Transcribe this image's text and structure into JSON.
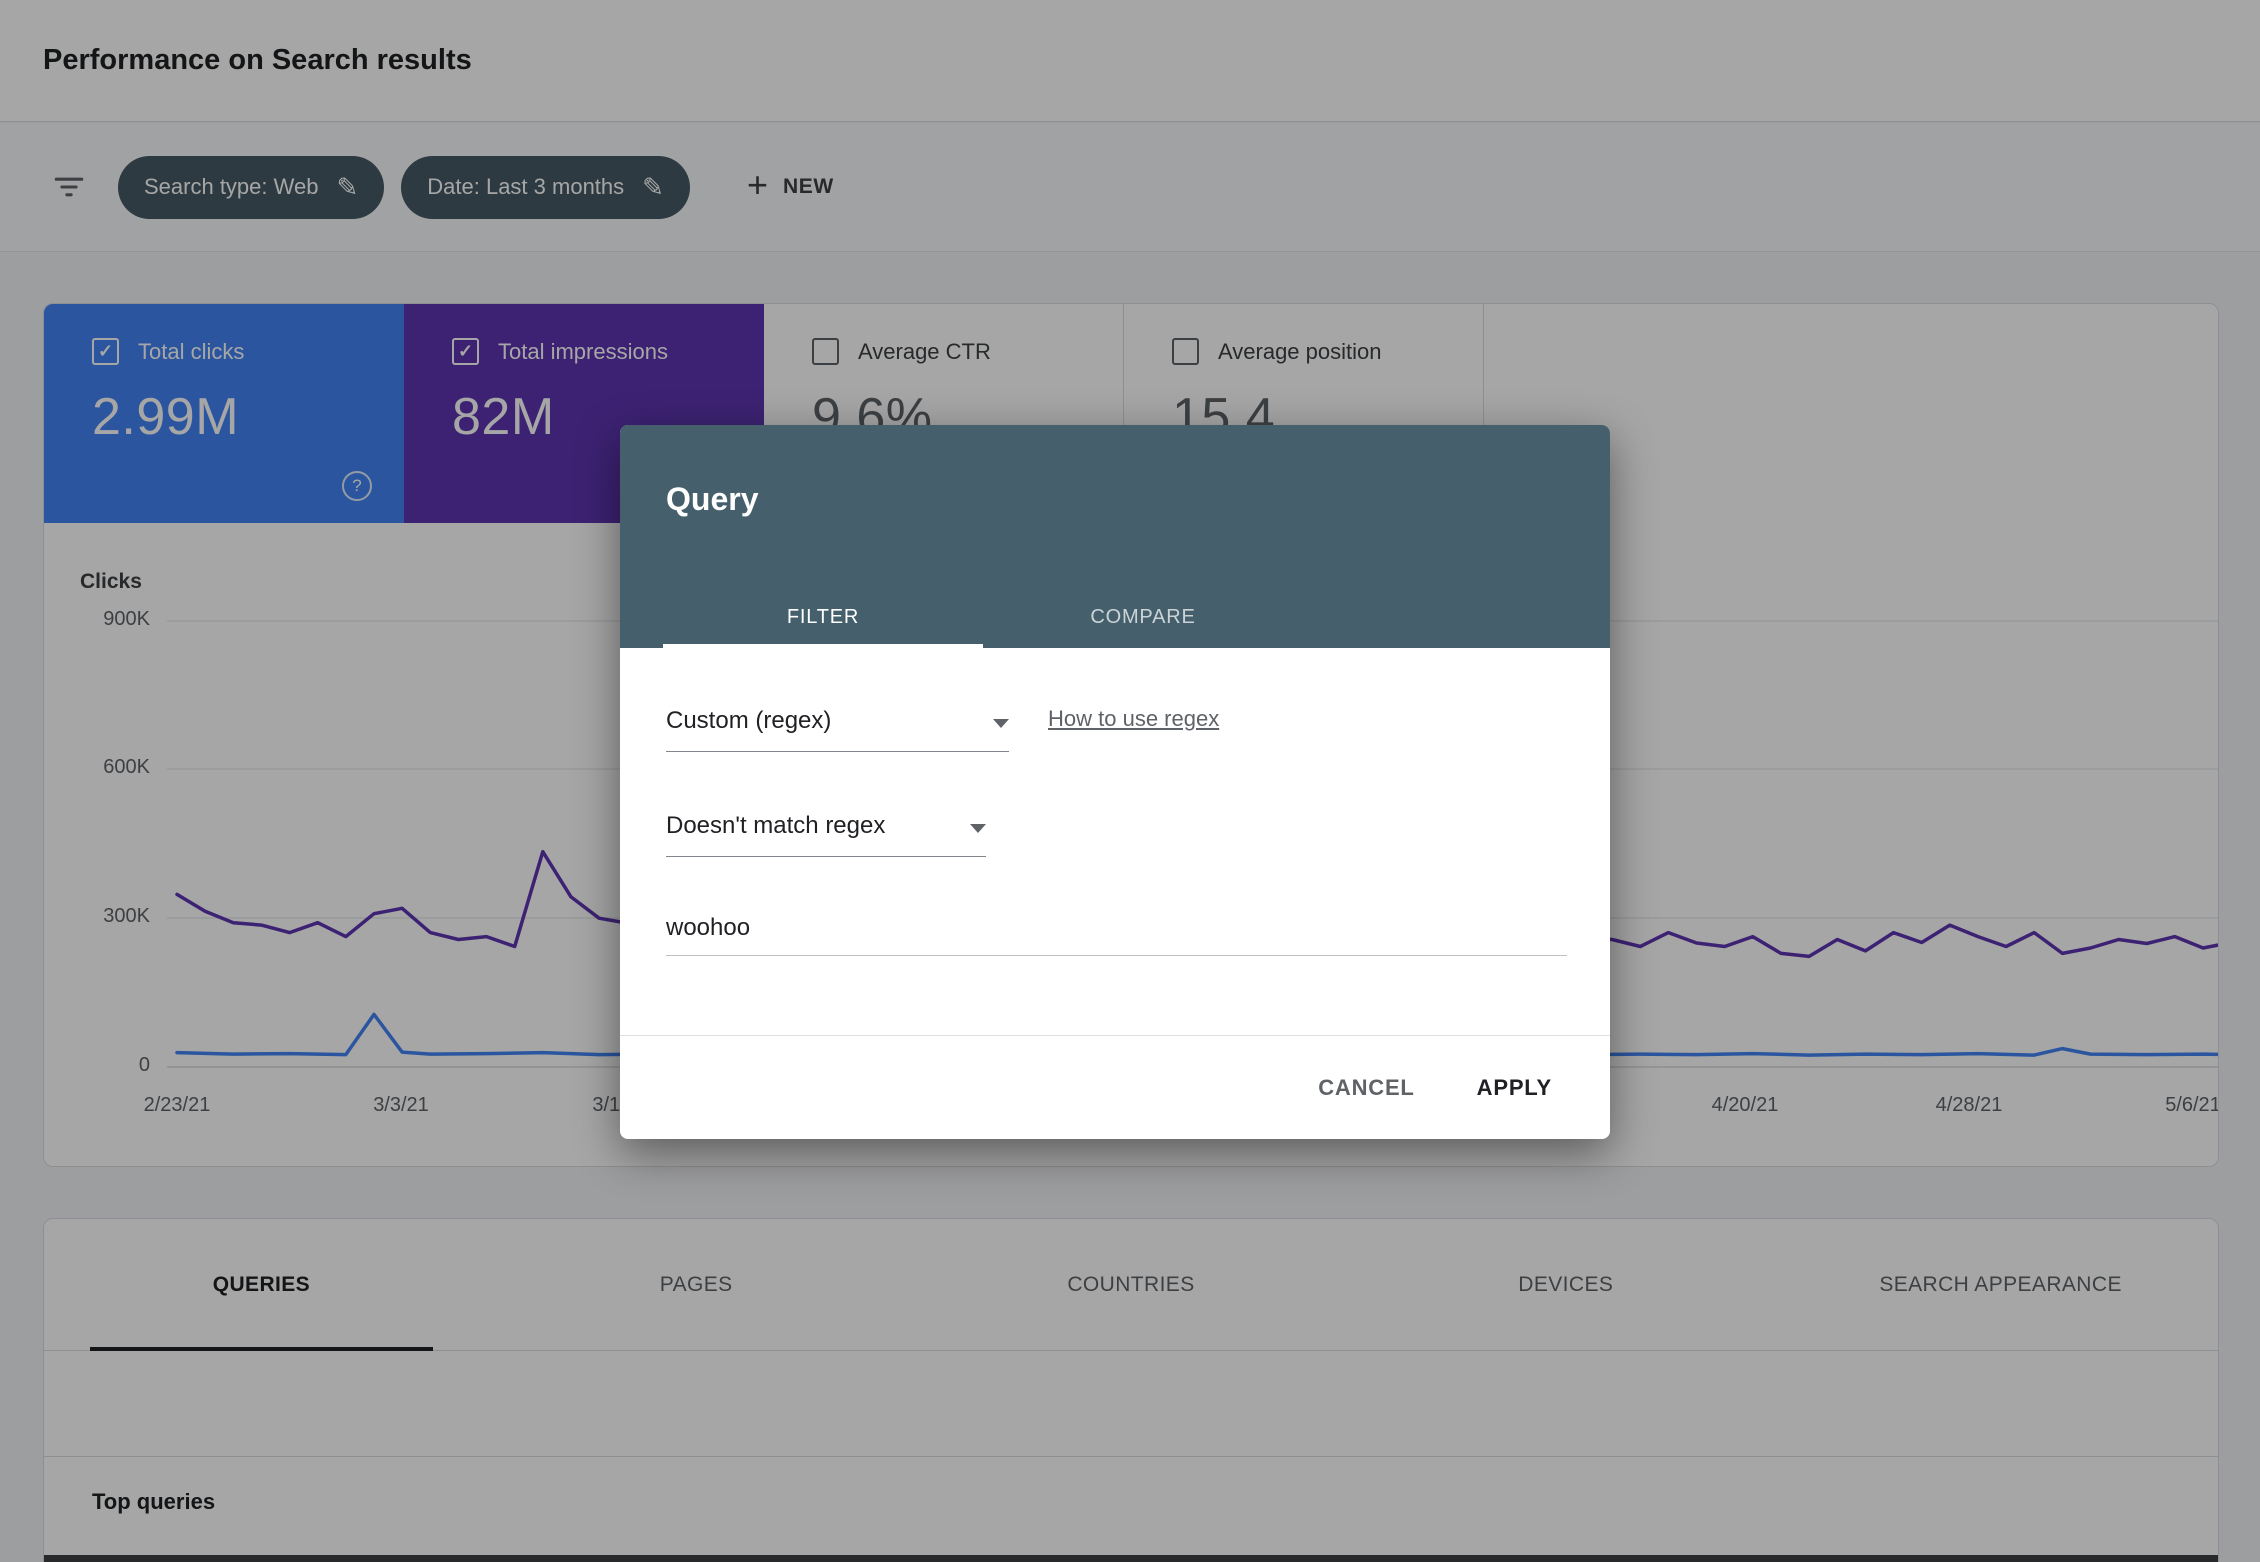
{
  "app": {
    "title": "Performance on Search results"
  },
  "icons": {
    "edit": "✎",
    "plus": "+",
    "check": "✓",
    "help": "?"
  },
  "filter_bar": {
    "chips": [
      {
        "label": "Search type: Web"
      },
      {
        "label": "Date: Last 3 months"
      }
    ],
    "new_button_label": "NEW"
  },
  "metrics": [
    {
      "label": "Total clicks",
      "value": "2.99M",
      "selected": true,
      "color": "#4285f4"
    },
    {
      "label": "Total impressions",
      "value": "82M",
      "selected": true,
      "color": "#5e35b1"
    },
    {
      "label": "Average CTR",
      "value": "9.6%",
      "selected": false
    },
    {
      "label": "Average position",
      "value": "15.4",
      "selected": false
    }
  ],
  "chart_data": {
    "type": "line",
    "axis_label": "Clicks",
    "y_ticks": [
      "900K",
      "600K",
      "300K",
      "0"
    ],
    "ylim_thousands": [
      0,
      900
    ],
    "x_ticks": [
      "2/23/21",
      "3/3/21",
      "3/11/21",
      "4/20/21",
      "4/28/21",
      "5/6/21"
    ],
    "grid": true,
    "series": [
      {
        "name": "Total impressions",
        "color": "#5e35b1",
        "points": [
          [
            0,
            348
          ],
          [
            1,
            314
          ],
          [
            2,
            291
          ],
          [
            3,
            286
          ],
          [
            4,
            271
          ],
          [
            5,
            291
          ],
          [
            6,
            263
          ],
          [
            7,
            309
          ],
          [
            8,
            320
          ],
          [
            9,
            271
          ],
          [
            10,
            257
          ],
          [
            11,
            263
          ],
          [
            12,
            243
          ],
          [
            13,
            434
          ],
          [
            14,
            343
          ],
          [
            15,
            300
          ],
          [
            17,
            280
          ],
          [
            19,
            296
          ],
          [
            21,
            268
          ],
          [
            23,
            287
          ],
          [
            25,
            262
          ],
          [
            27,
            291
          ],
          [
            29,
            274
          ],
          [
            31,
            301
          ],
          [
            33,
            279
          ],
          [
            35,
            263
          ],
          [
            37,
            286
          ],
          [
            39,
            269
          ],
          [
            41,
            291
          ],
          [
            43,
            274
          ],
          [
            45,
            259
          ],
          [
            47,
            281
          ],
          [
            49,
            268
          ],
          [
            51,
            257
          ],
          [
            52,
            243
          ],
          [
            53,
            271
          ],
          [
            54,
            250
          ],
          [
            55,
            243
          ],
          [
            56,
            263
          ],
          [
            57,
            229
          ],
          [
            58,
            223
          ],
          [
            59,
            257
          ],
          [
            60,
            234
          ],
          [
            61,
            271
          ],
          [
            62,
            251
          ],
          [
            63,
            286
          ],
          [
            64,
            263
          ],
          [
            65,
            243
          ],
          [
            66,
            271
          ],
          [
            67,
            229
          ],
          [
            68,
            240
          ],
          [
            69,
            257
          ],
          [
            70,
            249
          ],
          [
            71,
            263
          ],
          [
            72,
            240
          ],
          [
            73,
            251
          ]
        ]
      },
      {
        "name": "Total clicks",
        "color": "#4285f4",
        "points": [
          [
            0,
            29
          ],
          [
            2,
            26
          ],
          [
            4,
            27
          ],
          [
            6,
            25
          ],
          [
            7,
            106
          ],
          [
            8,
            30
          ],
          [
            9,
            26
          ],
          [
            11,
            27
          ],
          [
            13,
            29
          ],
          [
            15,
            25
          ],
          [
            17,
            26
          ],
          [
            20,
            27
          ],
          [
            23,
            25
          ],
          [
            26,
            26
          ],
          [
            29,
            27
          ],
          [
            32,
            25
          ],
          [
            35,
            26
          ],
          [
            38,
            27
          ],
          [
            41,
            25
          ],
          [
            44,
            26
          ],
          [
            47,
            27
          ],
          [
            50,
            25
          ],
          [
            52,
            26
          ],
          [
            54,
            25
          ],
          [
            56,
            27
          ],
          [
            58,
            24
          ],
          [
            60,
            26
          ],
          [
            62,
            25
          ],
          [
            64,
            27
          ],
          [
            66,
            24
          ],
          [
            67,
            37
          ],
          [
            68,
            26
          ],
          [
            70,
            25
          ],
          [
            72,
            26
          ],
          [
            73,
            25
          ]
        ]
      }
    ]
  },
  "tabs": {
    "active": "QUERIES",
    "items": [
      "QUERIES",
      "PAGES",
      "COUNTRIES",
      "DEVICES",
      "SEARCH APPEARANCE"
    ]
  },
  "table": {
    "section_title": "Top queries"
  },
  "dialog": {
    "title": "Query",
    "tabs": [
      {
        "label": "FILTER",
        "active": true
      },
      {
        "label": "COMPARE",
        "active": false
      }
    ],
    "filter_type_value": "Custom (regex)",
    "help_link": "How to use regex",
    "match_type_value": "Doesn't match regex",
    "query_value": "woohoo",
    "cancel_label": "CANCEL",
    "apply_label": "APPLY"
  }
}
